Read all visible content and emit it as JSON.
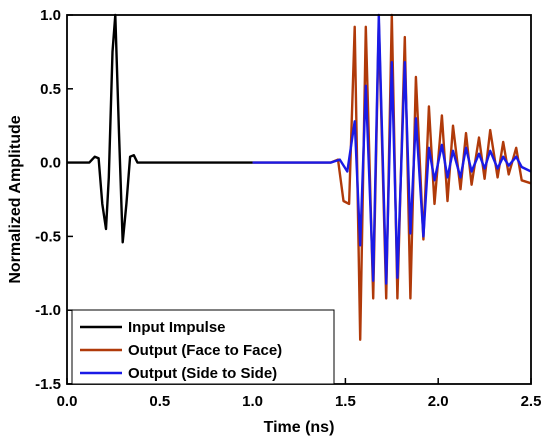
{
  "chart_data": {
    "type": "line",
    "xlabel": "Time (ns)",
    "ylabel": "Normalized Amplitude",
    "xlim": [
      0.0,
      2.5
    ],
    "ylim": [
      -1.5,
      1.0
    ],
    "xticks": [
      0.0,
      0.5,
      1.0,
      1.5,
      2.0,
      2.5
    ],
    "xtick_labels": [
      "0.0",
      "0.5",
      "1.0",
      "1.5",
      "2.0",
      "2.5"
    ],
    "yticks": [
      -1.5,
      -1.0,
      -0.5,
      0.0,
      0.5,
      1.0
    ],
    "ytick_labels": [
      "-1.5",
      "-1.0",
      "-0.5",
      "0.0",
      "0.5",
      "1.0"
    ],
    "grid": false,
    "legend_position": "bottom-center",
    "series": [
      {
        "name": "Input Impulse",
        "color": "#000000",
        "x": [
          0.0,
          0.12,
          0.15,
          0.17,
          0.19,
          0.21,
          0.225,
          0.245,
          0.26,
          0.28,
          0.3,
          0.32,
          0.34,
          0.36,
          0.38,
          0.42,
          1.0
        ],
        "y": [
          0.0,
          0.0,
          0.04,
          0.03,
          -0.28,
          -0.45,
          -0.1,
          0.75,
          1.0,
          0.2,
          -0.54,
          -0.28,
          0.04,
          0.05,
          0.0,
          0.0,
          0.0
        ]
      },
      {
        "name": "Output (Face to Face)",
        "color": "#b03a0a",
        "x": [
          1.0,
          1.42,
          1.46,
          1.49,
          1.52,
          1.55,
          1.58,
          1.61,
          1.65,
          1.68,
          1.72,
          1.75,
          1.78,
          1.82,
          1.85,
          1.88,
          1.92,
          1.95,
          1.98,
          2.02,
          2.05,
          2.08,
          2.12,
          2.15,
          2.18,
          2.22,
          2.25,
          2.28,
          2.32,
          2.35,
          2.38,
          2.42,
          2.45,
          2.5
        ],
        "y": [
          0.0,
          0.0,
          0.02,
          -0.26,
          -0.28,
          0.92,
          -1.2,
          0.92,
          -0.92,
          0.95,
          -0.92,
          1.0,
          -0.92,
          0.85,
          -0.92,
          0.58,
          -0.52,
          0.38,
          -0.28,
          0.32,
          -0.26,
          0.25,
          -0.18,
          0.2,
          -0.15,
          0.17,
          -0.11,
          0.22,
          -0.1,
          0.14,
          -0.08,
          0.1,
          -0.12,
          -0.14
        ]
      },
      {
        "name": "Output (Side to Side)",
        "color": "#1a1ae6",
        "x": [
          1.0,
          1.42,
          1.47,
          1.51,
          1.55,
          1.58,
          1.61,
          1.65,
          1.68,
          1.72,
          1.75,
          1.78,
          1.82,
          1.85,
          1.88,
          1.92,
          1.95,
          1.98,
          2.02,
          2.05,
          2.08,
          2.12,
          2.15,
          2.18,
          2.22,
          2.25,
          2.28,
          2.32,
          2.35,
          2.38,
          2.42,
          2.45,
          2.5
        ],
        "y": [
          0.0,
          0.0,
          0.02,
          -0.06,
          0.28,
          -0.56,
          0.52,
          -0.8,
          1.0,
          -0.82,
          0.68,
          -0.78,
          0.68,
          -0.48,
          0.3,
          -0.5,
          0.1,
          -0.12,
          0.12,
          -0.1,
          0.08,
          -0.1,
          0.1,
          -0.06,
          0.06,
          -0.04,
          0.08,
          -0.04,
          0.04,
          -0.02,
          0.04,
          -0.03,
          -0.06
        ]
      }
    ]
  }
}
